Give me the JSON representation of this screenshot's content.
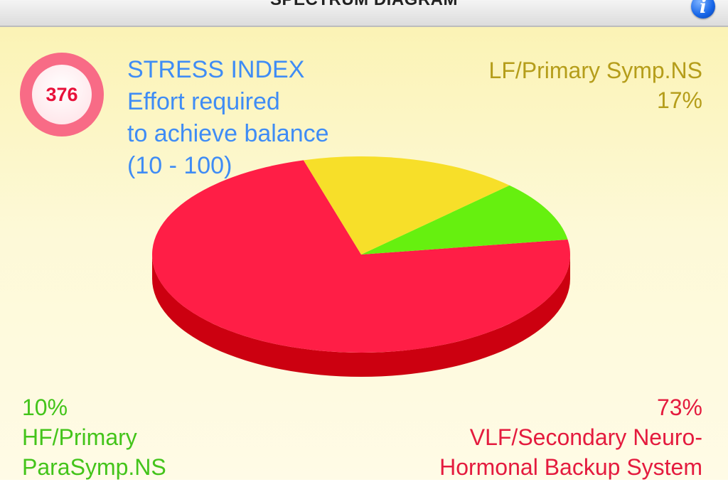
{
  "header": {
    "title": "SPECTRUM DIAGRAM",
    "info_icon": "info-icon"
  },
  "stress": {
    "value": "376",
    "title": "STRESS INDEX",
    "line1": "Effort required",
    "line2": "to achieve balance",
    "line3": "(10 - 100)"
  },
  "labels": {
    "lf_name": "LF/Primary Symp.NS",
    "lf_pct": "17%",
    "hf_pct": "10%",
    "hf_name1": "HF/Primary",
    "hf_name2": "ParaSymp.NS",
    "vlf_pct": "73%",
    "vlf_name1": "VLF/Secondary Neuro-",
    "vlf_name2": "Hormonal Backup System"
  },
  "colors": {
    "lf": "#f7df29",
    "lf_dark": "#c9b414",
    "hf": "#66f00f",
    "hf_dark": "#3fbd06",
    "vlf": "#ff1e46",
    "vlf_dark": "#cc0010",
    "stress_text": "#3f8cf5"
  },
  "chart_data": {
    "type": "pie",
    "title": "",
    "slices": [
      {
        "label": "VLF/Secondary Neuro-Hormonal Backup System",
        "value": 73
      },
      {
        "label": "HF/Primary ParaSymp.NS",
        "value": 10
      },
      {
        "label": "LF/Primary Symp.NS",
        "value": 17
      }
    ]
  }
}
